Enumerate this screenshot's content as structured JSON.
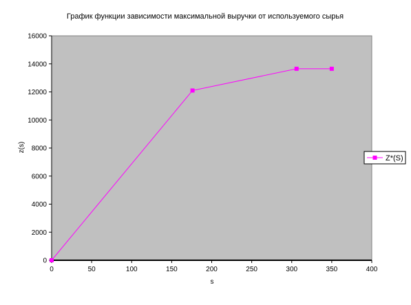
{
  "chart_data": {
    "type": "line",
    "title": "График функции зависимости максимальной выручки от используемого сырья",
    "xlabel": "s",
    "ylabel": "z(s)",
    "xlim": [
      0,
      400
    ],
    "ylim": [
      0,
      16000
    ],
    "x_ticks": [
      0,
      50,
      100,
      150,
      200,
      250,
      300,
      350,
      400
    ],
    "y_ticks": [
      0,
      2000,
      4000,
      6000,
      8000,
      10000,
      12000,
      14000,
      16000
    ],
    "grid": false,
    "legend_position": "right",
    "plot_background": "#c0c0c0",
    "series": [
      {
        "name": "Z*(S)",
        "color": "#ff00ff",
        "marker": "square",
        "x": [
          0,
          176,
          306,
          350
        ],
        "y": [
          0,
          12100,
          13650,
          13650
        ]
      }
    ]
  }
}
